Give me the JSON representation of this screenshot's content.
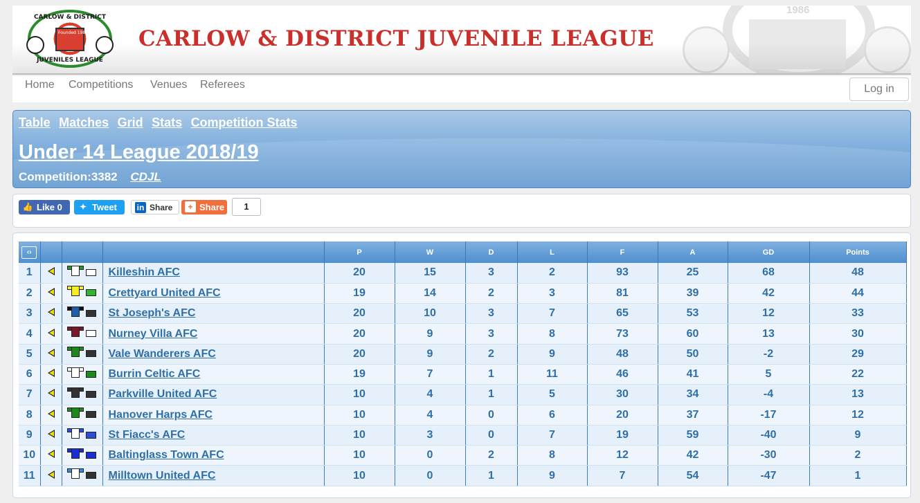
{
  "banner": {
    "title": "CARLOW & DISTRICT JUVENILE LEAGUE",
    "logo_top": "CARLOW & DISTRICT",
    "logo_bottom": "JUVENILES LEAGUE",
    "logo_founded": "Founded 1986",
    "watermark_year": "1986"
  },
  "nav": {
    "items": [
      "Home",
      "Competitions",
      "Venues",
      "Referees"
    ],
    "login": "Log in"
  },
  "competition": {
    "tabs": [
      "Table",
      "Matches",
      "Grid",
      "Stats",
      "Competition Stats"
    ],
    "title": "Under 14 League 2018/19",
    "meta": "Competition:3382",
    "org": "CDJL"
  },
  "share": {
    "like": "Like 0",
    "tweet": "Tweet",
    "linkedin": "Share",
    "share": "Share",
    "count": "1"
  },
  "table": {
    "swap_label": "‹›",
    "headers": [
      "P",
      "W",
      "D",
      "L",
      "F",
      "A",
      "GD",
      "Points"
    ],
    "rows": [
      {
        "pos": "1",
        "team": "Killeshin AFC",
        "P": "20",
        "W": "15",
        "D": "3",
        "L": "2",
        "F": "93",
        "A": "25",
        "GD": "68",
        "Pts": "48",
        "shirt": "#ffffff",
        "trim": "#1f9a2a",
        "shorts": "#ffffff"
      },
      {
        "pos": "2",
        "team": "Crettyard United AFC",
        "P": "19",
        "W": "14",
        "D": "2",
        "L": "3",
        "F": "81",
        "A": "39",
        "GD": "42",
        "Pts": "44",
        "shirt": "#f6ef1f",
        "trim": "#f6ef1f",
        "shorts": "#2fb52f"
      },
      {
        "pos": "3",
        "team": "St Joseph's AFC",
        "P": "20",
        "W": "10",
        "D": "3",
        "L": "7",
        "F": "65",
        "A": "53",
        "GD": "12",
        "Pts": "33",
        "shirt": "#1f5fa8",
        "trim": "#111111",
        "shorts": "#333333"
      },
      {
        "pos": "4",
        "team": "Nurney Villa AFC",
        "P": "20",
        "W": "9",
        "D": "3",
        "L": "8",
        "F": "73",
        "A": "60",
        "GD": "13",
        "Pts": "30",
        "shirt": "#7a1a2a",
        "trim": "#7a1a2a",
        "shorts": "#ffffff"
      },
      {
        "pos": "5",
        "team": "Vale Wanderers AFC",
        "P": "20",
        "W": "9",
        "D": "2",
        "L": "9",
        "F": "48",
        "A": "50",
        "GD": "-2",
        "Pts": "29",
        "shirt": "#1b8a1b",
        "trim": "#1b8a1b",
        "shorts": "#333333"
      },
      {
        "pos": "6",
        "team": "Burrin Celtic AFC",
        "P": "19",
        "W": "7",
        "D": "1",
        "L": "11",
        "F": "46",
        "A": "41",
        "GD": "5",
        "Pts": "22",
        "shirt": "#ffffff",
        "trim": "#ffffff",
        "shorts": "#1b8a1b"
      },
      {
        "pos": "7",
        "team": "Parkville United AFC",
        "P": "10",
        "W": "4",
        "D": "1",
        "L": "5",
        "F": "30",
        "A": "34",
        "GD": "-4",
        "Pts": "13",
        "shirt": "#333333",
        "trim": "#333333",
        "shorts": "#333333"
      },
      {
        "pos": "8",
        "team": "Hanover Harps AFC",
        "P": "10",
        "W": "4",
        "D": "0",
        "L": "6",
        "F": "20",
        "A": "37",
        "GD": "-17",
        "Pts": "12",
        "shirt": "#1b8a1b",
        "trim": "#1b8a1b",
        "shorts": "#333333"
      },
      {
        "pos": "9",
        "team": "St Fiacc's AFC",
        "P": "10",
        "W": "3",
        "D": "0",
        "L": "7",
        "F": "19",
        "A": "59",
        "GD": "-40",
        "Pts": "9",
        "shirt": "#ffffff",
        "trim": "#2a4fd8",
        "shorts": "#2a4fd8"
      },
      {
        "pos": "10",
        "team": "Baltinglass Town AFC",
        "P": "10",
        "W": "0",
        "D": "2",
        "L": "8",
        "F": "12",
        "A": "42",
        "GD": "-30",
        "Pts": "2",
        "shirt": "#1a2fd0",
        "trim": "#1a2fd0",
        "shorts": "#1a2fd0"
      },
      {
        "pos": "11",
        "team": "Milltown United AFC",
        "P": "10",
        "W": "0",
        "D": "1",
        "L": "9",
        "F": "7",
        "A": "54",
        "GD": "-47",
        "Pts": "1",
        "shirt": "#ffffff",
        "trim": "#3a8ad8",
        "shorts": "#333333"
      }
    ]
  },
  "colors": {
    "accent": "#c9302c",
    "header_blue": "#5f97cf",
    "link": "#2f6fa8"
  }
}
